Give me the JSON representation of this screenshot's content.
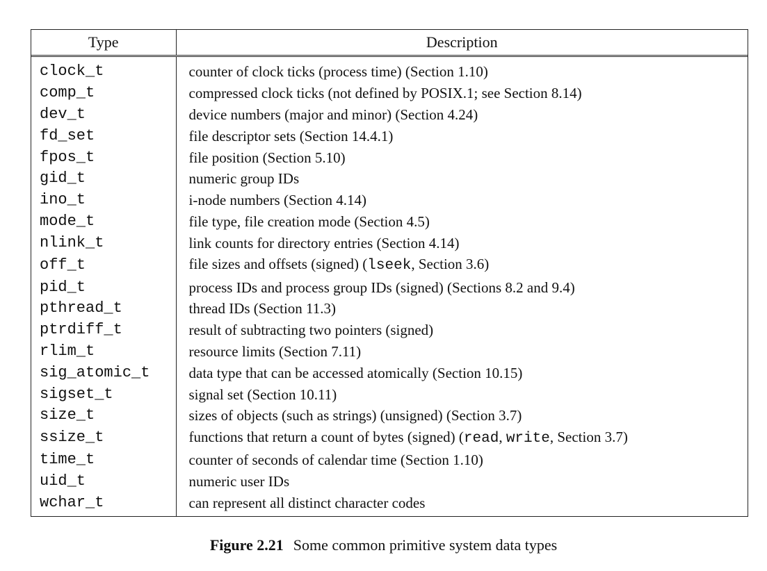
{
  "table": {
    "headers": {
      "type": "Type",
      "description": "Description"
    },
    "rows": [
      {
        "type": "clock_t",
        "description": [
          {
            "text": "counter of clock ticks (process time) (Section 1.10)"
          }
        ]
      },
      {
        "type": "comp_t",
        "description": [
          {
            "text": "compressed clock ticks (not defined by POSIX.1; see Section 8.14)"
          }
        ]
      },
      {
        "type": "dev_t",
        "description": [
          {
            "text": "device numbers (major and minor) (Section 4.24)"
          }
        ]
      },
      {
        "type": "fd_set",
        "description": [
          {
            "text": "file descriptor sets (Section 14.4.1)"
          }
        ]
      },
      {
        "type": "fpos_t",
        "description": [
          {
            "text": "file position (Section 5.10)"
          }
        ]
      },
      {
        "type": "gid_t",
        "description": [
          {
            "text": "numeric group IDs"
          }
        ]
      },
      {
        "type": "ino_t",
        "description": [
          {
            "text": "i-node numbers (Section 4.14)"
          }
        ]
      },
      {
        "type": "mode_t",
        "description": [
          {
            "text": "file type, file creation mode (Section 4.5)"
          }
        ]
      },
      {
        "type": "nlink_t",
        "description": [
          {
            "text": "link counts for directory entries (Section 4.14)"
          }
        ]
      },
      {
        "type": "off_t",
        "description": [
          {
            "text": "file sizes and offsets (signed) ("
          },
          {
            "text": "lseek",
            "code": true
          },
          {
            "text": ", Section 3.6)"
          }
        ]
      },
      {
        "type": "pid_t",
        "description": [
          {
            "text": "process IDs and process group IDs (signed) (Sections 8.2 and 9.4)"
          }
        ]
      },
      {
        "type": "pthread_t",
        "description": [
          {
            "text": "thread IDs (Section 11.3)"
          }
        ]
      },
      {
        "type": "ptrdiff_t",
        "description": [
          {
            "text": "result of subtracting two pointers (signed)"
          }
        ]
      },
      {
        "type": "rlim_t",
        "description": [
          {
            "text": "resource limits (Section 7.11)"
          }
        ]
      },
      {
        "type": "sig_atomic_t",
        "description": [
          {
            "text": "data type that can be accessed atomically (Section 10.15)"
          }
        ]
      },
      {
        "type": "sigset_t",
        "description": [
          {
            "text": "signal set (Section 10.11)"
          }
        ]
      },
      {
        "type": "size_t",
        "description": [
          {
            "text": "sizes of objects (such as strings) (unsigned) (Section 3.7)"
          }
        ]
      },
      {
        "type": "ssize_t",
        "description": [
          {
            "text": "functions that return a count of bytes (signed) ("
          },
          {
            "text": "read",
            "code": true
          },
          {
            "text": ", "
          },
          {
            "text": "write",
            "code": true
          },
          {
            "text": ", Section 3.7)"
          }
        ]
      },
      {
        "type": "time_t",
        "description": [
          {
            "text": "counter of seconds of calendar time (Section 1.10)"
          }
        ]
      },
      {
        "type": "uid_t",
        "description": [
          {
            "text": "numeric user IDs"
          }
        ]
      },
      {
        "type": "wchar_t",
        "description": [
          {
            "text": "can represent all distinct character codes"
          }
        ]
      }
    ]
  },
  "caption": {
    "label": "Figure 2.21",
    "text": "Some common primitive system data types"
  }
}
